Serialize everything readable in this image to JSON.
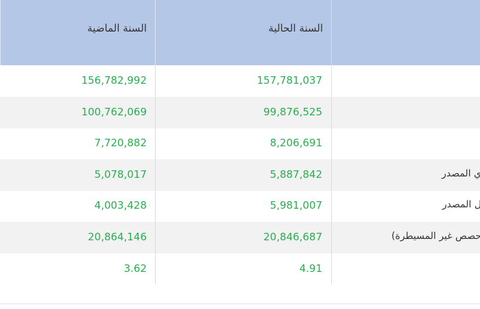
{
  "header": {
    "last_year": "السنة الماضية",
    "current_year": "السنة الحالية"
  },
  "table": {
    "rows": [
      {
        "current": "157,781,037",
        "last": "156,782,992"
      },
      {
        "current": "99,876,525",
        "last": "100,762,069"
      },
      {
        "current": "8,206,691",
        "last": "7,720,882"
      },
      {
        "label": "ي المصدر",
        "current": "5,887,842",
        "last": "5,078,017"
      },
      {
        "label": "ل المصدر",
        "current": "5,981,007",
        "last": "4,003,428"
      },
      {
        "label": "حصص غير المسيطرة)",
        "current": "20,846,687",
        "last": "20,864,146"
      },
      {
        "current": "4.91",
        "last": "3.62"
      }
    ]
  }
}
